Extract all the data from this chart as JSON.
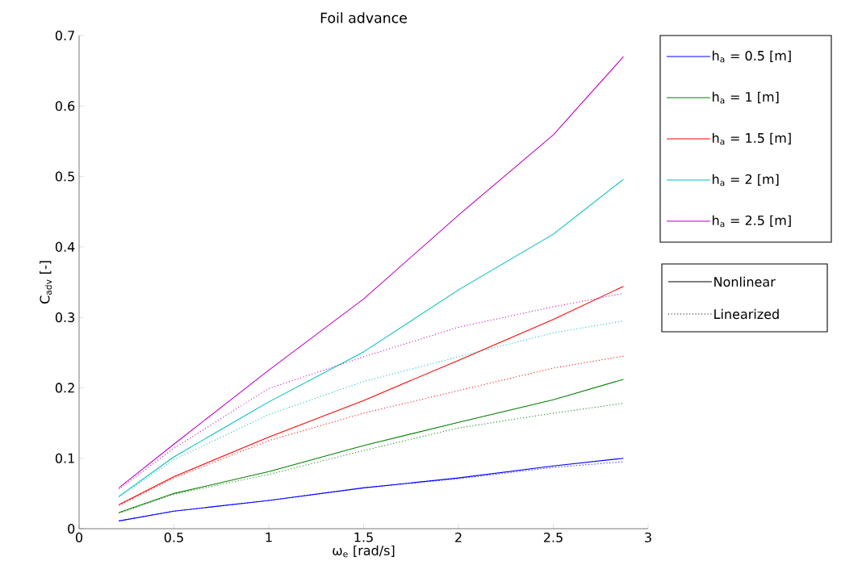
{
  "chart_data": {
    "type": "line",
    "title": "Foil advance",
    "xlabel": "ω$_{e}$ [rad/s]",
    "ylabel": "C$_{adv}$ [-]",
    "xlim": [
      0,
      3
    ],
    "ylim": [
      0,
      0.7
    ],
    "xticks": [
      0,
      0.5,
      1,
      1.5,
      2,
      2.5,
      3
    ],
    "yticks": [
      0,
      0.1,
      0.2,
      0.3,
      0.4,
      0.5,
      0.6,
      0.7
    ],
    "grid": false,
    "legend": "top right",
    "series": [
      {
        "name": "h$_{a}$ = 0.5 [m]",
        "color": "#0000ff",
        "line_style": "solid",
        "x": [
          0.21,
          0.5,
          1,
          1.5,
          2,
          2.5,
          2.87
        ],
        "values": [
          0.011,
          0.025,
          0.04,
          0.058,
          0.072,
          0.089,
          0.1
        ]
      },
      {
        "name": "h$_{a}$ = 1 [m]",
        "color": "#008000",
        "line_style": "solid",
        "x": [
          0.21,
          0.5,
          1,
          1.5,
          2,
          2.5,
          2.87
        ],
        "values": [
          0.023,
          0.05,
          0.081,
          0.118,
          0.151,
          0.183,
          0.212
        ]
      },
      {
        "name": "h$_{a}$ = 1.5 [m]",
        "color": "#ff0000",
        "line_style": "solid",
        "x": [
          0.21,
          0.5,
          1,
          1.5,
          2,
          2.5,
          2.87
        ],
        "values": [
          0.034,
          0.074,
          0.13,
          0.182,
          0.239,
          0.297,
          0.344
        ]
      },
      {
        "name": "h$_{a}$ = 2 [m]",
        "color": "#00bfbf",
        "line_style": "solid",
        "x": [
          0.21,
          0.5,
          1,
          1.5,
          2,
          2.5,
          2.87
        ],
        "values": [
          0.046,
          0.102,
          0.18,
          0.251,
          0.339,
          0.418,
          0.496
        ]
      },
      {
        "name": "h$_{a}$ = 2.5 [m]",
        "color": "#bf00bf",
        "line_style": "solid",
        "x": [
          0.21,
          0.5,
          1,
          1.5,
          2,
          2.5,
          2.87
        ],
        "values": [
          0.058,
          0.12,
          0.225,
          0.326,
          0.445,
          0.559,
          0.67
        ]
      },
      {
        "color": "#0000ff",
        "line_style": "dotted",
        "x": [
          0.21,
          0.5,
          1,
          1.5,
          2,
          2.5,
          2.87
        ],
        "values": [
          0.011,
          0.025,
          0.04,
          0.058,
          0.071,
          0.087,
          0.095
        ]
      },
      {
        "color": "#008000",
        "line_style": "dotted",
        "x": [
          0.21,
          0.5,
          1,
          1.5,
          2,
          2.5,
          2.87
        ],
        "values": [
          0.022,
          0.049,
          0.077,
          0.111,
          0.143,
          0.164,
          0.178
        ]
      },
      {
        "color": "#ff0000",
        "line_style": "dotted",
        "x": [
          0.21,
          0.5,
          1,
          1.5,
          2,
          2.5,
          2.87
        ],
        "values": [
          0.033,
          0.072,
          0.125,
          0.164,
          0.196,
          0.228,
          0.245
        ]
      },
      {
        "color": "#00bfbf",
        "line_style": "dotted",
        "x": [
          0.21,
          0.5,
          1,
          1.5,
          2,
          2.5,
          2.87
        ],
        "values": [
          0.045,
          0.098,
          0.162,
          0.209,
          0.244,
          0.278,
          0.295
        ]
      },
      {
        "color": "#bf00bf",
        "line_style": "dotted",
        "x": [
          0.21,
          0.5,
          1,
          1.5,
          2,
          2.5,
          2.87
        ],
        "values": [
          0.056,
          0.114,
          0.199,
          0.244,
          0.286,
          0.315,
          0.334
        ]
      },
      {
        "name": "Nonlinear",
        "color": "#000000",
        "line_style": "solid"
      },
      {
        "name": "Linearized",
        "color": "#000000",
        "line_style": "dotted"
      }
    ]
  }
}
